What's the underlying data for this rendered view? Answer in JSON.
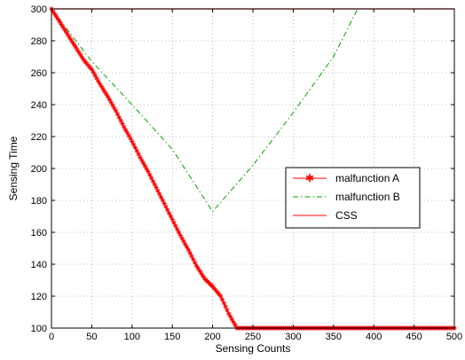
{
  "chart_data": {
    "type": "line",
    "xlabel": "Sensing Counts",
    "ylabel": "Sensing Time",
    "xlim": [
      0,
      500
    ],
    "ylim": [
      100,
      300
    ],
    "x_ticks": [
      0,
      50,
      100,
      150,
      200,
      250,
      300,
      350,
      400,
      450,
      500
    ],
    "y_ticks": [
      100,
      120,
      140,
      160,
      180,
      200,
      220,
      240,
      260,
      280,
      300
    ],
    "grid": true,
    "legend_position": "right, mid-height",
    "series": [
      {
        "name": "malfunction A",
        "style": "red line with star markers",
        "color": "#ff0000",
        "x": [
          0,
          10,
          20,
          30,
          40,
          50,
          60,
          70,
          80,
          90,
          100,
          110,
          120,
          130,
          140,
          150,
          160,
          170,
          180,
          190,
          200,
          210,
          220,
          230,
          240,
          300,
          350,
          400,
          450,
          500
        ],
        "y": [
          300,
          292,
          284,
          276,
          268,
          262,
          253,
          245,
          236,
          226,
          217,
          207,
          198,
          188,
          178,
          168,
          158,
          149,
          139,
          131,
          126,
          120,
          109,
          100,
          100,
          100,
          100,
          100,
          100,
          100
        ]
      },
      {
        "name": "malfunction B",
        "style": "green dash-dot",
        "color": "#00a000",
        "x": [
          0,
          50,
          100,
          150,
          200,
          250,
          300,
          350,
          380,
          500
        ],
        "y": [
          300,
          267,
          240,
          212,
          173,
          202,
          235,
          270,
          300,
          300
        ]
      },
      {
        "name": "CSS",
        "style": "red solid",
        "color": "#ff0000",
        "x": [
          0,
          500
        ],
        "y": [
          300,
          300
        ]
      }
    ]
  }
}
